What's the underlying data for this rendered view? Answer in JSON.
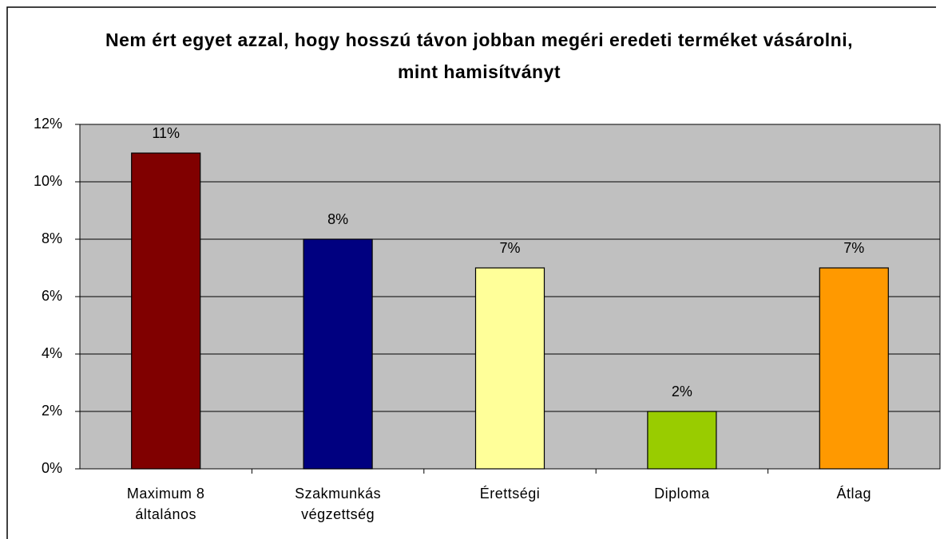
{
  "chart_data": {
    "type": "bar",
    "title": "Nem ért egyet azzal, hogy hosszú távon jobban megéri eredeti terméket vásárolni, mint hamisítványt",
    "categories": [
      "Maximum 8 általános",
      "Szakmunkás végzettség",
      "Érettségi",
      "Diploma",
      "Átlag"
    ],
    "values": [
      11,
      8,
      7,
      2,
      7
    ],
    "value_labels": [
      "11%",
      "8%",
      "7%",
      "2%",
      "7%"
    ],
    "colors": [
      "#800000",
      "#000080",
      "#ffff99",
      "#99cc00",
      "#ff9900"
    ],
    "ylim": [
      0,
      12
    ],
    "yticks": [
      {
        "value": 0,
        "label": "0%"
      },
      {
        "value": 2,
        "label": "2%"
      },
      {
        "value": 4,
        "label": "4%"
      },
      {
        "value": 6,
        "label": "6%"
      },
      {
        "value": 8,
        "label": "8%"
      },
      {
        "value": 10,
        "label": "10%"
      },
      {
        "value": 12,
        "label": "12%"
      }
    ],
    "grid": true
  }
}
